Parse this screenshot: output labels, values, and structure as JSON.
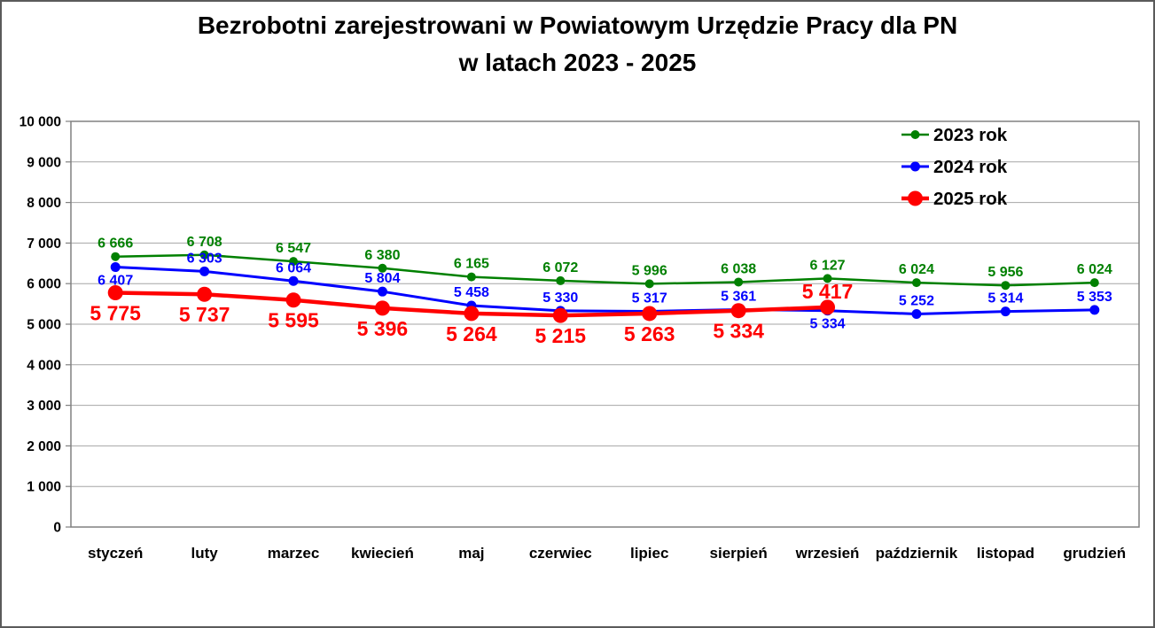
{
  "chart_data": {
    "type": "line",
    "title_lines": [
      "Bezrobotni zarejestrowani w Powiatowym Urzędzie Pracy dla PN",
      "w latach 2023 - 2025"
    ],
    "categories": [
      "styczeń",
      "luty",
      "marzec",
      "kwiecień",
      "maj",
      "czerwiec",
      "lipiec",
      "sierpień",
      "wrzesień",
      "październik",
      "listopad",
      "grudzień"
    ],
    "y_axis": {
      "min": 0,
      "max": 10000,
      "step": 1000,
      "tick_format": "space-thousands"
    },
    "grid": true,
    "grid_color": "#a6a6a6",
    "axis_color": "#808080",
    "text_color": "#000000",
    "legend": {
      "position": "inside-top-right",
      "items": [
        "2023 rok",
        "2024 rok",
        "2025 rok"
      ]
    },
    "series": [
      {
        "name": "2023 rok",
        "color": "#008000",
        "line_width": 2.5,
        "marker_radius": 5,
        "label_font": 16,
        "values": [
          6666,
          6708,
          6547,
          6380,
          6165,
          6072,
          5996,
          6038,
          6127,
          6024,
          5956,
          6024
        ],
        "label_positions": [
          "above",
          "above",
          "above",
          "above",
          "above",
          "above",
          "above",
          "above",
          "above",
          "above",
          "above",
          "above"
        ]
      },
      {
        "name": "2024 rok",
        "color": "#0000ff",
        "line_width": 3,
        "marker_radius": 5.5,
        "label_font": 16,
        "values": [
          6407,
          6303,
          6064,
          5804,
          5458,
          5330,
          5317,
          5361,
          5334,
          5252,
          5314,
          5353
        ],
        "label_positions": [
          "below",
          "above",
          "above",
          "above",
          "above",
          "above",
          "above",
          "above",
          "below",
          "above",
          "above",
          "above"
        ]
      },
      {
        "name": "2025 rok",
        "color": "#ff0000",
        "line_width": 4.5,
        "marker_radius": 8.5,
        "label_font": 23,
        "values": [
          5775,
          5737,
          5595,
          5396,
          5264,
          5215,
          5263,
          5334,
          5417
        ],
        "label_positions": [
          "below",
          "below",
          "below",
          "below",
          "below",
          "below",
          "below",
          "below",
          "above"
        ]
      }
    ]
  }
}
